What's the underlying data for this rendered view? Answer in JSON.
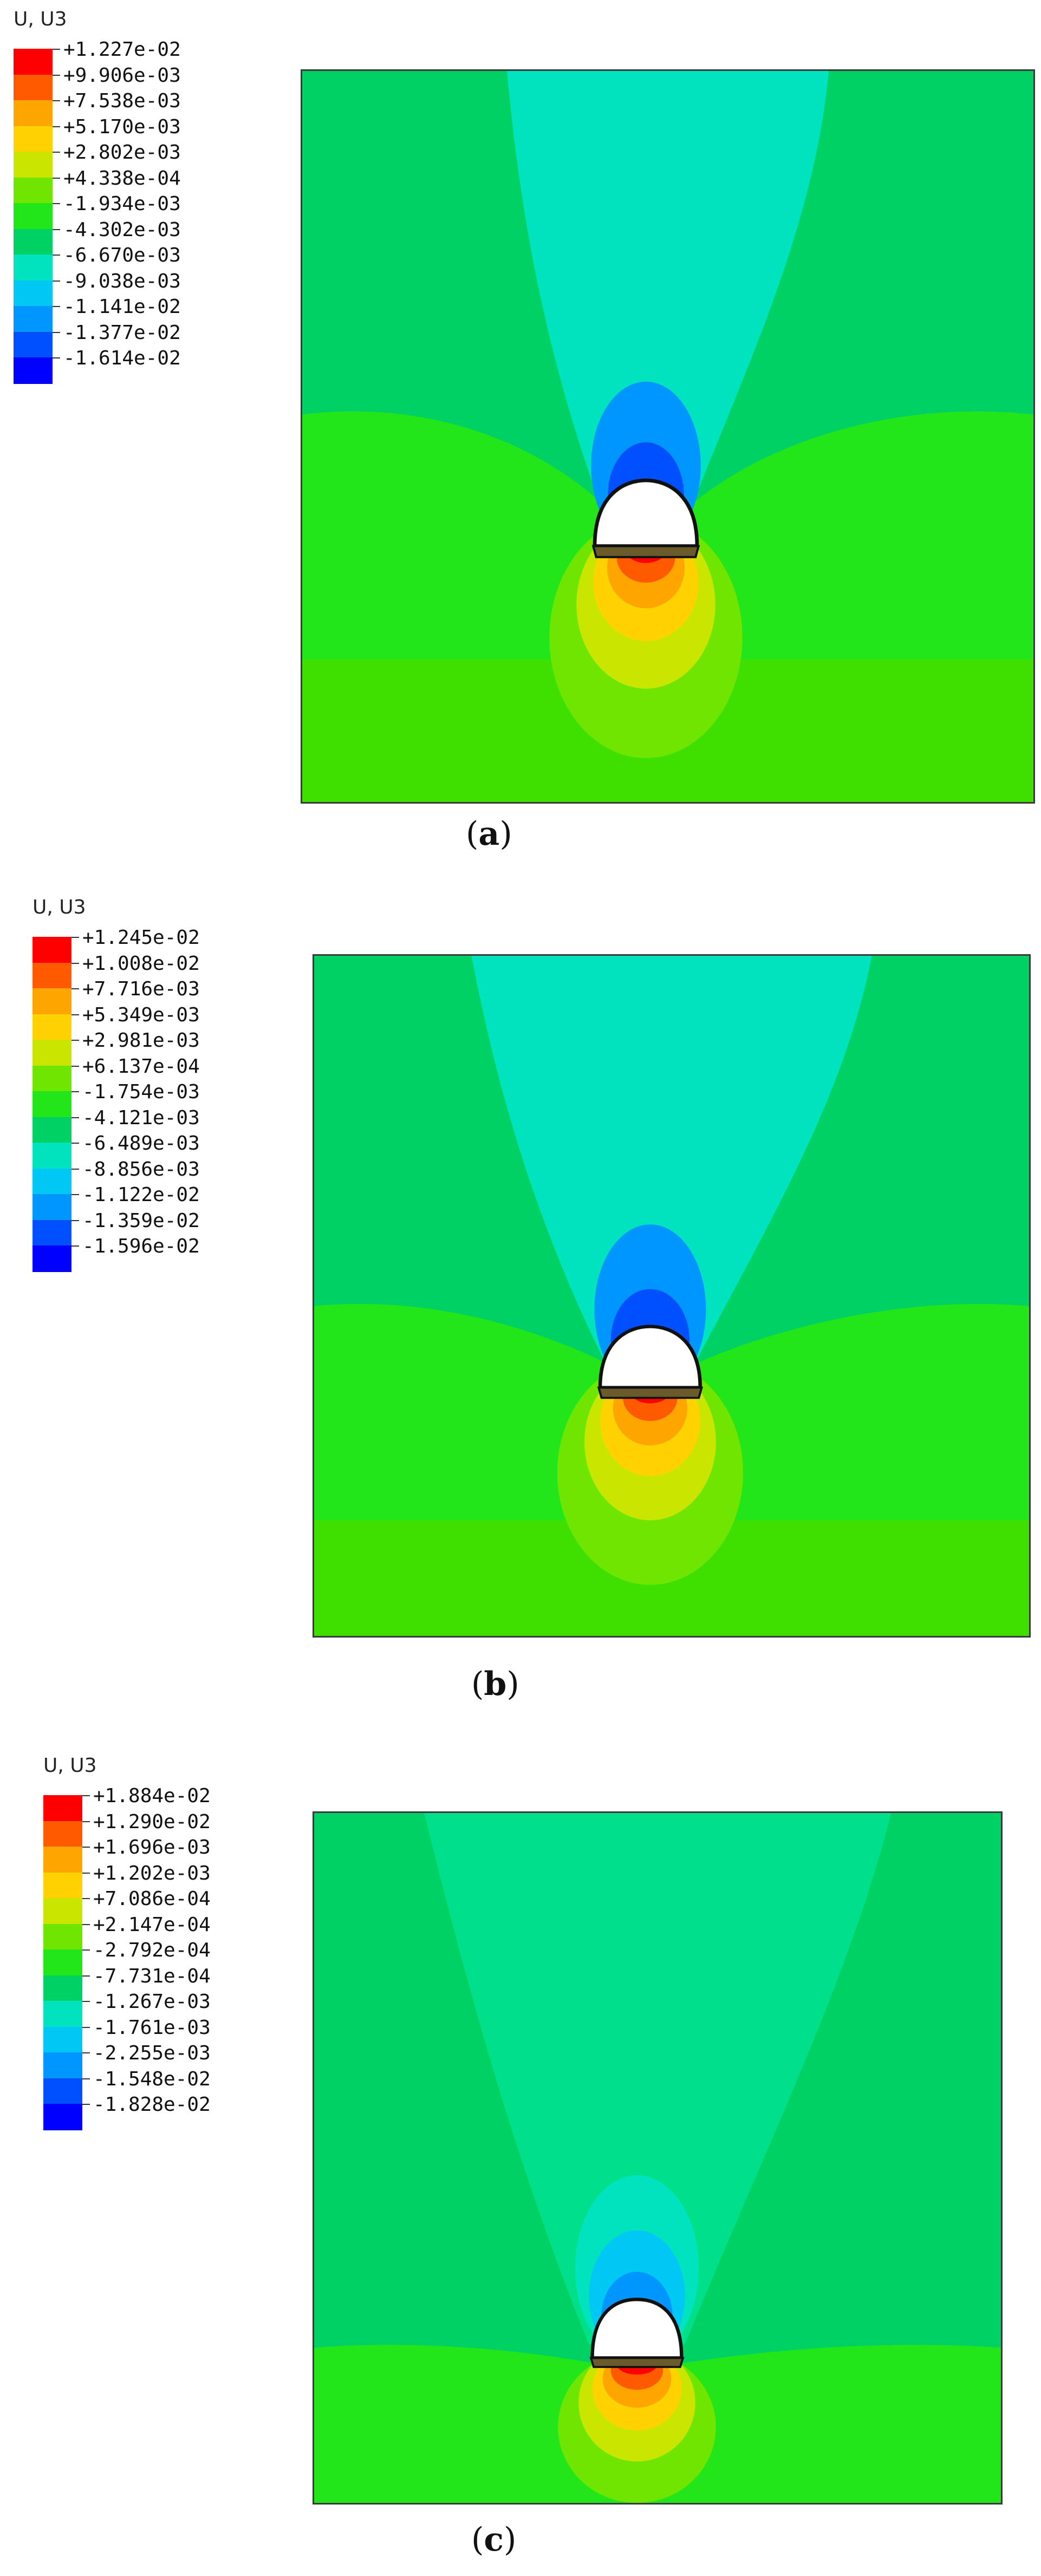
{
  "colors": [
    "#ff0000",
    "#ff5a00",
    "#ffa500",
    "#ffd200",
    "#c8e600",
    "#6ee600",
    "#22e61a",
    "#00d165",
    "#00e3bf",
    "#00c8f5",
    "#0096ff",
    "#0050ff",
    "#0000ff"
  ],
  "panels": [
    {
      "title": "U, U3",
      "labels": [
        "+1.227e-02",
        "+9.906e-03",
        "+7.538e-03",
        "+5.170e-03",
        "+2.802e-03",
        "+4.338e-04",
        "-1.934e-03",
        "-4.302e-03",
        "-6.670e-03",
        "-9.038e-03",
        "-1.141e-02",
        "-1.377e-02",
        "-1.614e-02"
      ],
      "caption_open": "(",
      "caption_letter": "a",
      "caption_close": ")"
    },
    {
      "title": "U, U3",
      "labels": [
        "+1.245e-02",
        "+1.008e-02",
        "+7.716e-03",
        "+5.349e-03",
        "+2.981e-03",
        "+6.137e-04",
        "-1.754e-03",
        "-4.121e-03",
        "-6.489e-03",
        "-8.856e-03",
        "-1.122e-02",
        "-1.359e-02",
        "-1.596e-02"
      ],
      "caption_open": "(",
      "caption_letter": "b",
      "caption_close": ")"
    },
    {
      "title": "U, U3",
      "labels": [
        "+1.884e-02",
        "+1.290e-02",
        "+1.696e-03",
        "+1.202e-03",
        "+7.086e-04",
        "+2.147e-04",
        "-2.792e-04",
        "-7.731e-04",
        "-1.267e-03",
        "-1.761e-03",
        "-2.255e-03",
        "-1.548e-02",
        "-1.828e-02"
      ],
      "caption_open": "(",
      "caption_letter": "c",
      "caption_close": ")"
    }
  ]
}
